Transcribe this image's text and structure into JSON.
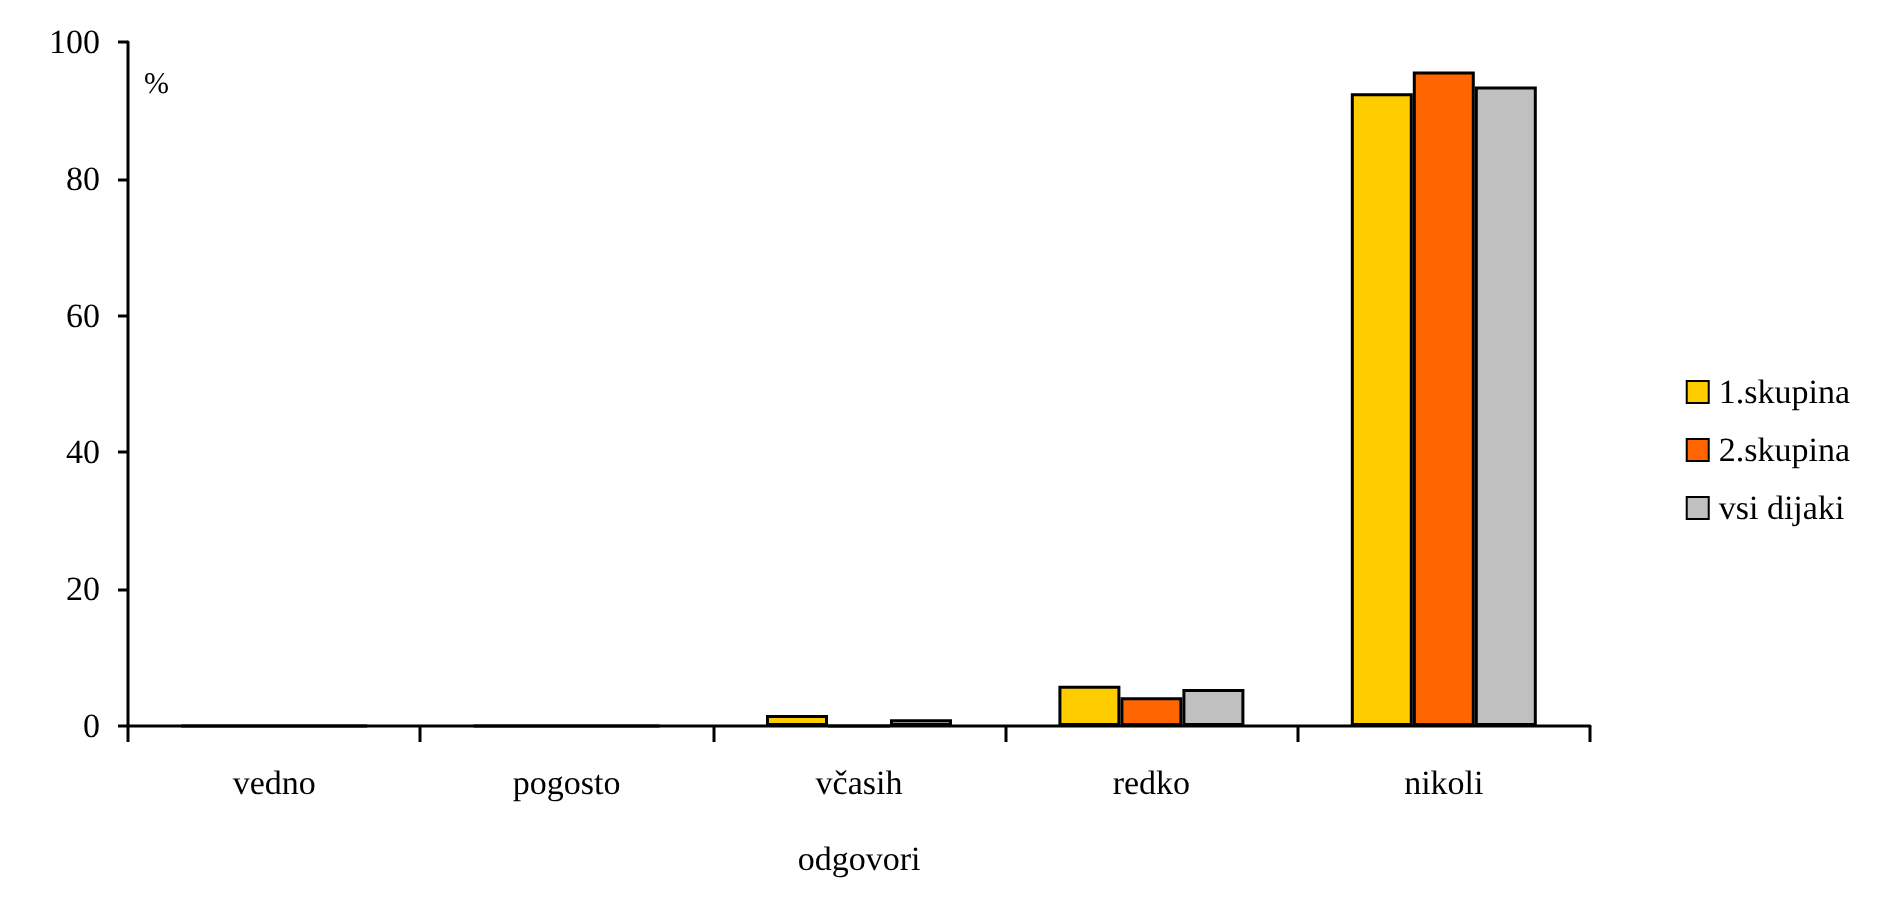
{
  "chart_data": {
    "type": "bar",
    "ylabel": "%",
    "xlabel": "odgovori",
    "categories": [
      "vedno",
      "pogosto",
      "včasih",
      "redko",
      "nikoli"
    ],
    "series": [
      {
        "name": "1.skupina",
        "color": "#ffcc00",
        "values": [
          0,
          0,
          1.6,
          5.9,
          92.5
        ]
      },
      {
        "name": "2.skupina",
        "color": "#ff6600",
        "values": [
          0,
          0,
          0,
          4.2,
          95.7
        ]
      },
      {
        "name": "vsi dijaki",
        "color": "#c0c0c0",
        "values": [
          0,
          0,
          1.0,
          5.4,
          93.5
        ]
      }
    ],
    "ylim": [
      0,
      100
    ],
    "yticks": [
      0,
      20,
      40,
      60,
      80,
      100
    ],
    "grid": false,
    "legend": "right"
  }
}
